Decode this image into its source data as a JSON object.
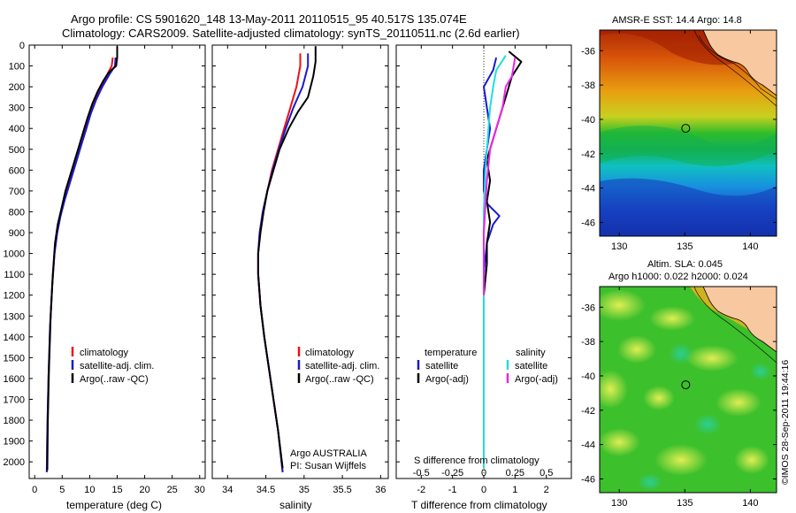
{
  "header": {
    "title_line1": "Argo profile: CS 5901620_148 13-May-2011 20110515_95 40.517S 135.074E",
    "title_line2": "Climatology: CARS2009. Satellite-adjusted climatology: synTS_20110511.nc (2.6d earlier)"
  },
  "colors": {
    "climatology": "#ee1111",
    "satellite": "#1a1acc",
    "argo": "#000000",
    "sal_satellite": "#22dddd",
    "sal_argo": "#ee22ee"
  },
  "depth_axis": {
    "ticks": [
      0,
      100,
      200,
      300,
      400,
      500,
      600,
      700,
      800,
      900,
      1000,
      1100,
      1200,
      1300,
      1400,
      1500,
      1600,
      1700,
      1800,
      1900,
      2000
    ],
    "range": [
      0,
      2080
    ]
  },
  "chart_data": [
    {
      "type": "line",
      "id": "temperature",
      "xlabel": "temperature (deg C)",
      "xlim": [
        -1,
        31
      ],
      "xticks": [
        0,
        5,
        10,
        15,
        20,
        25,
        30
      ],
      "legend": [
        "climatology",
        "satellite-adj. clim.",
        "Argo(..raw -QC)"
      ],
      "series": [
        {
          "name": "climatology",
          "color": "climatology",
          "x": [
            14.2,
            14.0,
            13.2,
            12.0,
            11.0,
            10.0,
            9.3,
            8.6,
            7.8,
            7.0,
            6.2,
            5.4,
            4.7,
            4.1,
            3.6,
            3.2,
            2.8,
            2.5,
            2.3,
            2.2
          ],
          "y": [
            60,
            100,
            140,
            200,
            260,
            330,
            400,
            460,
            530,
            600,
            670,
            740,
            820,
            900,
            1000,
            1150,
            1350,
            1600,
            1850,
            2050
          ]
        },
        {
          "name": "satellite-adj. clim.",
          "color": "satellite",
          "x": [
            14.7,
            14.6,
            13.6,
            12.3,
            11.2,
            10.2,
            9.4,
            8.7,
            7.9,
            7.1,
            6.3,
            5.5,
            4.7,
            4.1,
            3.6,
            3.2,
            2.8,
            2.5,
            2.3,
            2.2
          ],
          "y": [
            60,
            100,
            140,
            200,
            260,
            330,
            400,
            460,
            530,
            600,
            670,
            740,
            820,
            900,
            1000,
            1150,
            1350,
            1600,
            1850,
            2050
          ]
        },
        {
          "name": "Argo(..raw -QC)",
          "color": "argo",
          "x": [
            15.0,
            15.0,
            14.8,
            13.5,
            12.5,
            11.5,
            10.5,
            9.6,
            8.8,
            8.0,
            7.2,
            6.4,
            5.6,
            4.9,
            4.2,
            3.7,
            3.3,
            2.9,
            2.6,
            2.4,
            2.3
          ],
          "y": [
            5,
            60,
            100,
            130,
            170,
            220,
            280,
            350,
            420,
            490,
            560,
            630,
            700,
            780,
            860,
            950,
            1100,
            1300,
            1550,
            1800,
            2040
          ]
        }
      ]
    },
    {
      "type": "line",
      "id": "salinity",
      "xlabel": "salinity",
      "xlim": [
        33.8,
        36.1
      ],
      "xticks": [
        34,
        34.5,
        35,
        35.5,
        36
      ],
      "legend": [
        "climatology",
        "satellite-adj. clim.",
        "Argo(..raw -QC)"
      ],
      "annotation": [
        "Argo AUSTRALIA",
        "PI: Susan Wijffels"
      ],
      "series": [
        {
          "name": "climatology",
          "color": "climatology",
          "x": [
            34.95,
            34.95,
            34.9,
            34.82,
            34.74,
            34.66,
            34.58,
            34.52,
            34.46,
            34.42,
            34.4,
            34.4,
            34.43,
            34.48,
            34.54,
            34.6,
            34.66,
            34.72
          ],
          "y": [
            40,
            100,
            200,
            300,
            400,
            500,
            600,
            700,
            800,
            900,
            1000,
            1100,
            1250,
            1400,
            1550,
            1700,
            1850,
            2050
          ]
        },
        {
          "name": "satellite-adj. clim.",
          "color": "satellite",
          "x": [
            35.05,
            35.05,
            34.98,
            34.86,
            34.76,
            34.67,
            34.59,
            34.52,
            34.46,
            34.42,
            34.4,
            34.4,
            34.43,
            34.48,
            34.54,
            34.6,
            34.66,
            34.72
          ],
          "y": [
            40,
            100,
            200,
            300,
            400,
            500,
            600,
            700,
            800,
            900,
            1000,
            1100,
            1250,
            1400,
            1550,
            1700,
            1850,
            2050
          ]
        },
        {
          "name": "Argo(..raw -QC)",
          "color": "argo",
          "x": [
            35.15,
            35.15,
            35.12,
            35.05,
            34.92,
            34.8,
            34.68,
            34.6,
            34.52,
            34.47,
            34.43,
            34.4,
            34.4,
            34.43,
            34.48,
            34.54,
            34.6,
            34.66,
            34.72
          ],
          "y": [
            5,
            80,
            150,
            250,
            320,
            400,
            500,
            600,
            700,
            800,
            900,
            1000,
            1100,
            1250,
            1400,
            1550,
            1700,
            1850,
            2030
          ]
        }
      ]
    },
    {
      "type": "line",
      "id": "difference",
      "xlabel_top": "S difference from climatology",
      "xlabel": "T difference from climatology",
      "xlim": [
        -2.8,
        2.8
      ],
      "xticks": [
        -2,
        -1,
        0,
        1,
        2
      ],
      "xticks_top": [
        "-0.5",
        "-0.25",
        "0",
        "0.25",
        "0.5"
      ],
      "legend_title_t": "temperature",
      "legend_title_s": "salinity",
      "legend_t": [
        "satellite",
        "Argo(-adj)"
      ],
      "legend_s": [
        "satellite",
        "Argo(-adj)"
      ],
      "series": [
        {
          "name": "T satellite",
          "color": "satellite",
          "x": [
            0.4,
            0.3,
            0.0,
            0.1,
            0.2,
            0.1,
            0.0,
            0.0,
            0.1,
            0.5,
            0.3,
            0.1,
            0.0,
            0.0,
            0.0
          ],
          "y": [
            60,
            120,
            200,
            300,
            400,
            500,
            600,
            700,
            760,
            820,
            860,
            950,
            1100,
            1500,
            2030
          ]
        },
        {
          "name": "T Argo(-adj)",
          "color": "argo",
          "x": [
            0.8,
            1.2,
            0.9,
            0.7,
            0.5,
            0.3,
            0.1,
            0.2,
            0.1,
            0.2,
            0.1,
            0.1,
            0.0,
            0.0,
            0.0
          ],
          "y": [
            30,
            80,
            150,
            250,
            350,
            450,
            550,
            650,
            750,
            850,
            950,
            1050,
            1200,
            1500,
            2030
          ]
        },
        {
          "name": "S satellite",
          "color": "sal_satellite",
          "x": [
            0.7,
            0.4,
            0.3,
            0.2,
            0.15,
            0.1,
            0.05,
            0.0,
            0.0,
            0.0,
            0.0
          ],
          "y": [
            50,
            120,
            200,
            300,
            400,
            500,
            600,
            800,
            1000,
            1500,
            2030
          ]
        },
        {
          "name": "S Argo(-adj)",
          "color": "sal_argo",
          "x": [
            1.0,
            0.9,
            0.7,
            0.6,
            0.4,
            0.2,
            0.1,
            0.0,
            0.0
          ],
          "y": [
            60,
            150,
            200,
            300,
            400,
            500,
            650,
            900,
            1200
          ]
        }
      ]
    }
  ],
  "map_top": {
    "title": "AMSR-E SST: 14.4 Argo: 14.8",
    "lon_ticks": [
      130,
      135,
      140
    ],
    "lat_ticks": [
      -36,
      -38,
      -40,
      -42,
      -44,
      -46
    ],
    "lon_range": [
      128.5,
      142
    ],
    "lat_range": [
      -46.8,
      -34.8
    ],
    "argo_pos": [
      135.07,
      -40.52
    ]
  },
  "map_bottom": {
    "title_line1": "Altim. SLA: 0.045",
    "title_line2": "Argo h1000: 0.022 h2000: 0.024",
    "lon_ticks": [
      130,
      135,
      140
    ],
    "lat_ticks": [
      -36,
      -38,
      -40,
      -42,
      -44,
      -46
    ],
    "lon_range": [
      128.5,
      142
    ],
    "lat_range": [
      -46.8,
      -34.8
    ],
    "argo_pos": [
      135.07,
      -40.52
    ]
  },
  "credit": "©IMOS 28-Sep-2011 19:44:16"
}
